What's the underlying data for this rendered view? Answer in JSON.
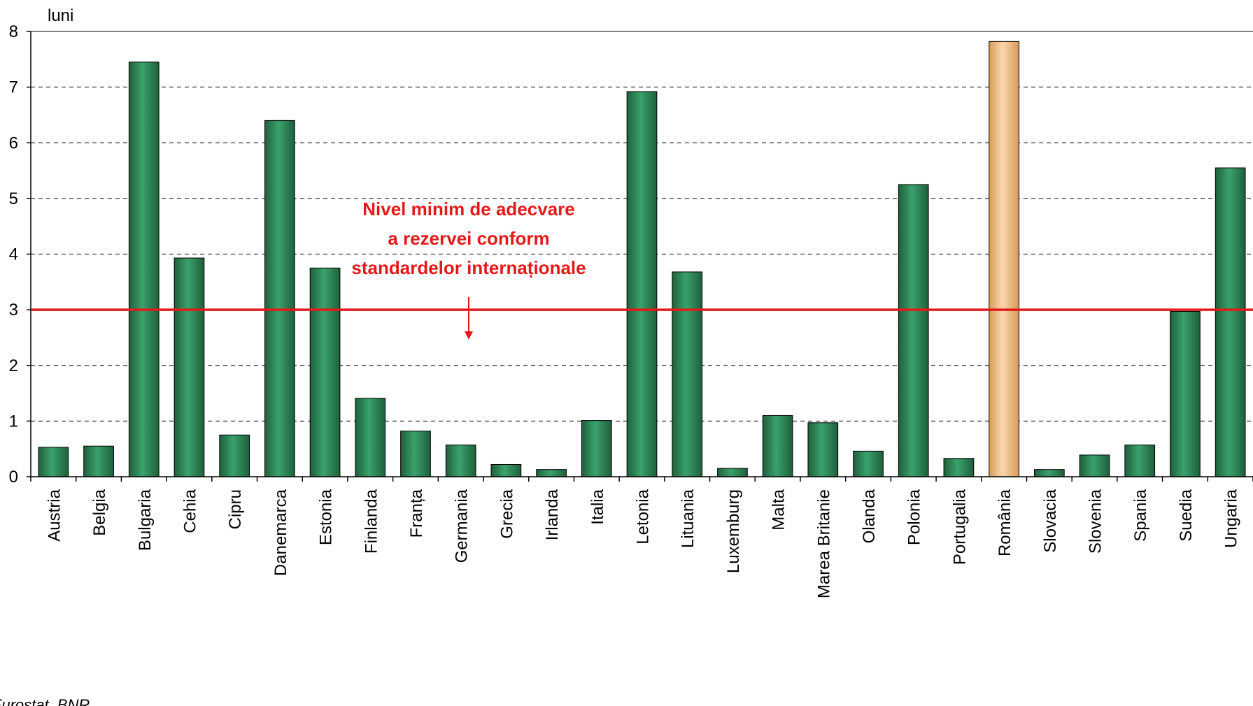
{
  "chart_data": {
    "type": "bar",
    "ylabel": "luni",
    "ylim": [
      0,
      8
    ],
    "yticks": [
      0,
      1,
      2,
      3,
      4,
      5,
      6,
      7,
      8
    ],
    "grid": "horizontal dashed",
    "categories": [
      "Austria",
      "Belgia",
      "Bulgaria",
      "Cehia",
      "Cipru",
      "Danemarca",
      "Estonia",
      "Finlanda",
      "Franța",
      "Germania",
      "Grecia",
      "Irlanda",
      "Italia",
      "Letonia",
      "Lituania",
      "Luxemburg",
      "Malta",
      "Marea Britanie",
      "Olanda",
      "Polonia",
      "Portugalia",
      "România",
      "Slovacia",
      "Slovenia",
      "Spania",
      "Suedia",
      "Ungaria"
    ],
    "values": [
      0.53,
      0.55,
      7.45,
      3.93,
      0.75,
      6.4,
      3.75,
      1.41,
      0.82,
      0.57,
      0.22,
      0.13,
      1.01,
      6.92,
      3.68,
      0.15,
      1.1,
      0.97,
      0.46,
      5.25,
      0.33,
      7.82,
      0.13,
      0.39,
      0.57,
      2.97,
      5.55
    ],
    "highlight_category": "România",
    "colors": {
      "bar": "#2e8b57",
      "bar_dark": "#1f5f3b",
      "highlight": "#f5c490",
      "highlight_dark": "#d89a55",
      "reference_line": "#e41a1a"
    },
    "reference_line": {
      "value": 3,
      "annotation": [
        "Nivel minim de adecvare",
        "a rezervei conform",
        "standardelor internaționale"
      ]
    },
    "source": "Sursa: Eurostat, BNR"
  }
}
